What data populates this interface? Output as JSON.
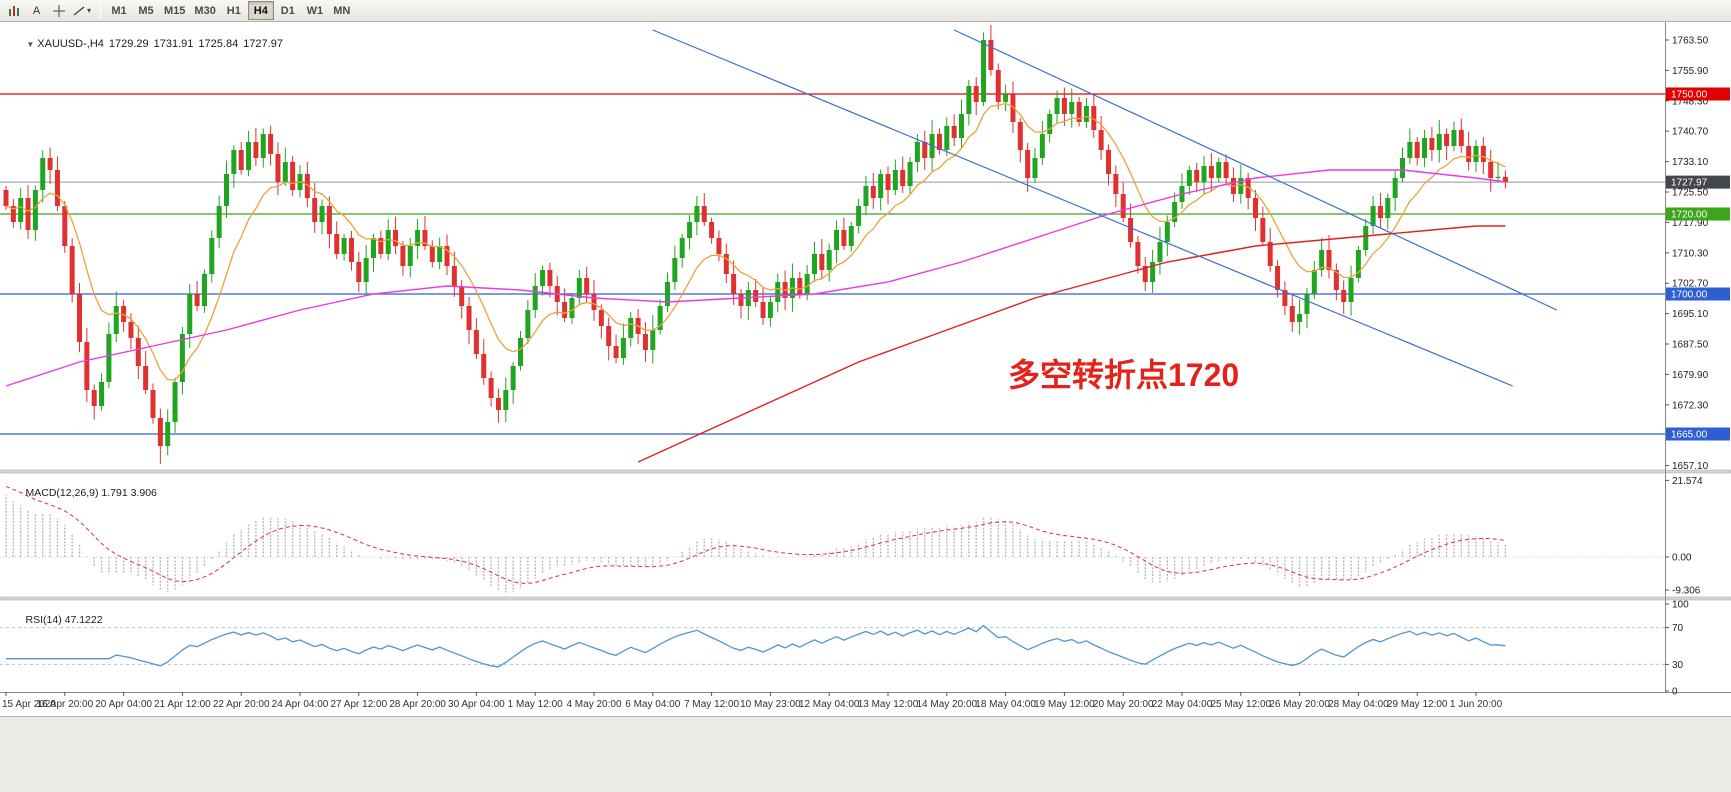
{
  "toolbar": {
    "icons": [
      {
        "name": "chart-window-icon"
      },
      {
        "name": "text-annotation-icon",
        "glyph": "A"
      },
      {
        "name": "crosshair-icon"
      },
      {
        "name": "drawing-tools-icon"
      }
    ],
    "timeframes": [
      "M1",
      "M5",
      "M15",
      "M30",
      "H1",
      "H4",
      "D1",
      "W1",
      "MN"
    ],
    "active_timeframe": "H4"
  },
  "chart_header": {
    "symbol_period": "XAUUSD-,H4",
    "open": "1729.29",
    "high": "1731.91",
    "low": "1725.84",
    "close": "1727.97"
  },
  "annotation": {
    "text": "多空转折点1720",
    "color": "#e32219"
  },
  "macd_panel": {
    "label": "MACD(12,26,9)",
    "value_main": "1.791",
    "value_signal": "3.906",
    "axis_labels": [
      "21.574",
      "0.00",
      "-9.306"
    ]
  },
  "rsi_panel": {
    "label": "RSI(14)",
    "value": "47.1222",
    "axis_labels": [
      "100",
      "70",
      "30",
      "0"
    ]
  },
  "price_axis": {
    "tick_labels": [
      "1763.50",
      "1755.90",
      "1748.30",
      "1740.70",
      "1733.10",
      "1725.50",
      "1717.90",
      "1710.30",
      "1702.70",
      "1695.10",
      "1687.50",
      "1679.90",
      "1672.30",
      "1664.70",
      "1657.10"
    ]
  },
  "time_axis": {
    "labels": [
      "15 Apr 2020",
      "16 Apr 20:00",
      "20 Apr 04:00",
      "21 Apr 12:00",
      "22 Apr 20:00",
      "24 Apr 04:00",
      "27 Apr 12:00",
      "28 Apr 20:00",
      "30 Apr 04:00",
      "1 May 12:00",
      "4 May 20:00",
      "6 May 04:00",
      "7 May 12:00",
      "10 May 23:00",
      "12 May 04:00",
      "13 May 12:00",
      "14 May 20:00",
      "18 May 04:00",
      "19 May 12:00",
      "20 May 20:00",
      "22 May 04:00",
      "25 May 12:00",
      "26 May 20:00",
      "28 May 04:00",
      "29 May 12:00",
      "1 Jun 20:00"
    ]
  },
  "chart_data": {
    "type": "candlestick",
    "symbol": "XAUUSD-",
    "timeframe": "H4",
    "ohlc_current": {
      "open": 1729.29,
      "high": 1731.91,
      "low": 1725.84,
      "close": 1727.97
    },
    "y_range": [
      1656,
      1768
    ],
    "first_open": 1726,
    "closes": [
      1722,
      1718,
      1724,
      1716,
      1726,
      1734,
      1731,
      1722,
      1712,
      1700,
      1688,
      1676,
      1672,
      1678,
      1690,
      1697,
      1693,
      1689,
      1682,
      1676,
      1669,
      1662,
      1668,
      1678,
      1690,
      1700,
      1697,
      1705,
      1714,
      1722,
      1730,
      1736,
      1731,
      1738,
      1734,
      1740,
      1735,
      1728,
      1733,
      1726,
      1730,
      1724,
      1718,
      1722,
      1715,
      1710,
      1714,
      1708,
      1703,
      1709,
      1714,
      1710,
      1716,
      1712,
      1707,
      1712,
      1716,
      1712,
      1708,
      1712,
      1707,
      1702,
      1697,
      1691,
      1685,
      1679,
      1674,
      1671,
      1676,
      1682,
      1689,
      1696,
      1702,
      1706,
      1702,
      1698,
      1694,
      1699,
      1704,
      1700,
      1696,
      1692,
      1687,
      1684,
      1689,
      1694,
      1690,
      1686,
      1691,
      1697,
      1703,
      1709,
      1714,
      1718,
      1722,
      1718,
      1714,
      1710,
      1705,
      1700,
      1697,
      1701,
      1698,
      1694,
      1698,
      1703,
      1699,
      1704,
      1700,
      1705,
      1710,
      1706,
      1711,
      1716,
      1712,
      1717,
      1722,
      1727,
      1724,
      1730,
      1726,
      1731,
      1727,
      1733,
      1738,
      1734,
      1740,
      1736,
      1742,
      1739,
      1745,
      1752,
      1748,
      1763.5,
      1756,
      1748,
      1750,
      1743,
      1736,
      1729,
      1734,
      1740,
      1745,
      1749,
      1745,
      1748,
      1743,
      1747,
      1741,
      1736,
      1730,
      1725,
      1719,
      1713,
      1707,
      1703,
      1708,
      1713,
      1718,
      1723,
      1727,
      1731,
      1728,
      1732,
      1729,
      1733,
      1729,
      1725,
      1729,
      1724,
      1719,
      1713,
      1707,
      1701,
      1697,
      1693,
      1695,
      1700,
      1706,
      1711,
      1706,
      1701,
      1698,
      1704,
      1711,
      1717,
      1722,
      1719,
      1724,
      1729,
      1734,
      1738,
      1734,
      1739,
      1736,
      1740,
      1737,
      1741,
      1737,
      1733,
      1737,
      1733,
      1729,
      1729.3,
      1727.97
    ],
    "wick_special": {
      "12": {
        "low": 1668.6
      },
      "21": {
        "low": 1657.5
      },
      "67": {
        "low": 1667.8
      },
      "133": {
        "high": 1765.4
      },
      "175": {
        "low": 1690.5
      }
    },
    "price_lines": [
      {
        "value": 1750.0,
        "label": "1750.00",
        "color": "#e00000"
      },
      {
        "value": 1720.0,
        "label": "1720.00",
        "color": "#3fa31c"
      },
      {
        "value": 1700.0,
        "label": "1700.00",
        "color": "#2e5fd0"
      },
      {
        "value": 1665.0,
        "label": "1665.00",
        "color": "#2e5fd0"
      }
    ],
    "current_price": {
      "value": 1727.97,
      "label": "1727.97",
      "color": "#43464b"
    },
    "trendlines": [
      {
        "from_bar": 88,
        "from_price": 1766,
        "to_bar": 205,
        "to_price": 1677,
        "color": "#3b6fd4"
      },
      {
        "from_bar": 129,
        "from_price": 1766,
        "to_bar": 211,
        "to_price": 1696,
        "color": "#3b6fd4"
      }
    ],
    "moving_averages": {
      "fast": {
        "type": "EMA",
        "period": 10,
        "color": "#e8a33d"
      },
      "medium": {
        "color": "#e63ce6",
        "points": [
          [
            0,
            1677
          ],
          [
            10,
            1683
          ],
          [
            20,
            1687
          ],
          [
            30,
            1691
          ],
          [
            40,
            1696
          ],
          [
            50,
            1700
          ],
          [
            60,
            1702
          ],
          [
            70,
            1701
          ],
          [
            80,
            1699
          ],
          [
            90,
            1698
          ],
          [
            100,
            1699
          ],
          [
            110,
            1700
          ],
          [
            120,
            1703
          ],
          [
            130,
            1708
          ],
          [
            140,
            1714
          ],
          [
            150,
            1720
          ],
          [
            160,
            1725
          ],
          [
            170,
            1729
          ],
          [
            180,
            1731
          ],
          [
            190,
            1731
          ],
          [
            200,
            1729
          ],
          [
            204,
            1728
          ]
        ]
      },
      "slow": {
        "color": "#e02020",
        "points": [
          [
            86,
            1658
          ],
          [
            92,
            1663
          ],
          [
            98,
            1668
          ],
          [
            104,
            1673
          ],
          [
            110,
            1678
          ],
          [
            116,
            1683
          ],
          [
            122,
            1687
          ],
          [
            128,
            1691
          ],
          [
            134,
            1695
          ],
          [
            140,
            1699
          ],
          [
            146,
            1702
          ],
          [
            152,
            1705
          ],
          [
            158,
            1708
          ],
          [
            164,
            1710
          ],
          [
            170,
            1712
          ],
          [
            176,
            1713
          ],
          [
            182,
            1714
          ],
          [
            188,
            1715
          ],
          [
            194,
            1716
          ],
          [
            200,
            1717
          ],
          [
            204,
            1717
          ]
        ]
      }
    },
    "indicators": {
      "macd": {
        "fast": 12,
        "slow": 26,
        "signal": 9,
        "seed_fast_ema": 1724,
        "seed_slow_ema": 1705,
        "seed_signal": 20.5,
        "current_main": 1.791,
        "current_signal": 3.906
      },
      "rsi": {
        "period": 14,
        "current": 47.1222,
        "levels": [
          70,
          30
        ]
      }
    },
    "colors": {
      "up": "#1fa51f",
      "down": "#e03030",
      "background": "#ffffff"
    }
  }
}
